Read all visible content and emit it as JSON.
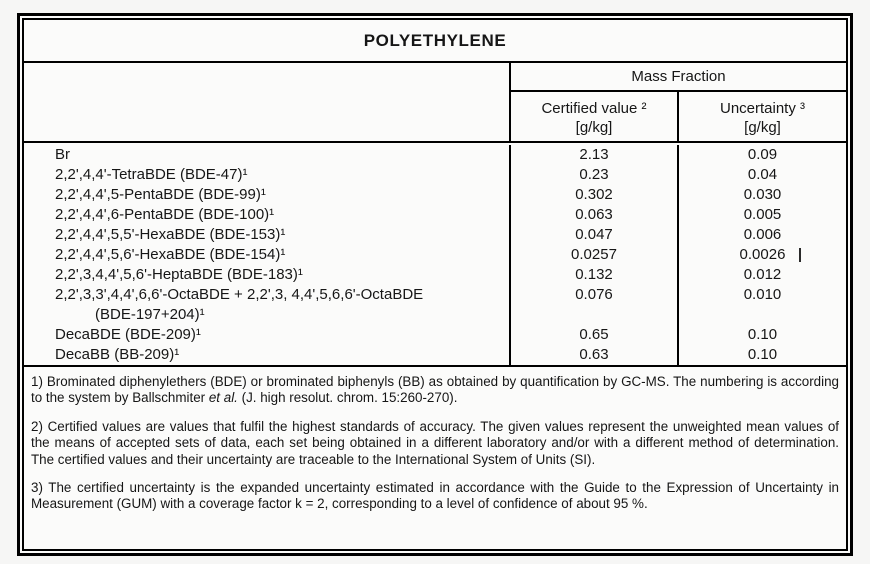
{
  "title": "POLYETHYLENE",
  "table": {
    "group_header": "Mass Fraction",
    "columns": [
      {
        "label": "Certified value ²",
        "unit": "[g/kg]"
      },
      {
        "label": "Uncertainty ³",
        "unit": "[g/kg]"
      }
    ],
    "rows": [
      {
        "name": "Br",
        "certified": "2.13",
        "uncertainty": "0.09"
      },
      {
        "name": "2,2',4,4'-TetraBDE (BDE-47)¹",
        "certified": "0.23",
        "uncertainty": "0.04"
      },
      {
        "name": "2,2',4,4',5-PentaBDE (BDE-99)¹",
        "certified": "0.302",
        "uncertainty": "0.030"
      },
      {
        "name": "2,2',4,4',6-PentaBDE (BDE-100)¹",
        "certified": "0.063",
        "uncertainty": "0.005"
      },
      {
        "name": "2,2',4,4',5,5'-HexaBDE (BDE-153)¹",
        "certified": "0.047",
        "uncertainty": "0.006"
      },
      {
        "name": "2,2',4,4',5,6'-HexaBDE (BDE-154)¹",
        "certified": "0.0257",
        "uncertainty": "0.0026"
      },
      {
        "name": "2,2',3,4,4',5,6'-HeptaBDE (BDE-183)¹",
        "certified": "0.132",
        "uncertainty": "0.012"
      },
      {
        "name": "2,2',3,3',4,4',6,6'-OctaBDE + 2,2',3, 4,4',5,6,6'-OctaBDE",
        "certified": "0.076",
        "uncertainty": "0.010"
      },
      {
        "name": "(BDE-197+204)¹",
        "certified": "",
        "uncertainty": ""
      },
      {
        "name": "DecaBDE (BDE-209)¹",
        "certified": "0.65",
        "uncertainty": "0.10"
      },
      {
        "name": "DecaBB (BB-209)¹",
        "certified": "0.63",
        "uncertainty": "0.10"
      }
    ]
  },
  "footnotes": {
    "fn1": {
      "before": "1) Brominated diphenylethers (BDE) or brominated biphenyls (BB) as obtained by quantification by GC-MS. The numbering is according to the system by Ballschmiter ",
      "italic": "et al.",
      "after": " (J. high resolut. chrom. 15:260-270)."
    },
    "fn2": "2) Certified values are values that fulfil the highest standards of accuracy. The given values represent the unweighted mean values of the means of accepted sets of data, each set being obtained in a different laboratory and/or with a different method of determination. The certified values and their uncertainty are traceable to the International System of Units (SI).",
    "fn3": "3) The certified uncertainty is the expanded uncertainty estimated in accordance with the Guide to the Expression of Uncertainty in Measurement (GUM) with a coverage factor k = 2, corresponding to a level of confidence of about 95 %."
  },
  "colors": {
    "border": "#000000",
    "text": "#161616",
    "page_bg": "#f6f6f5",
    "paper_bg": "#fbfbfa"
  }
}
